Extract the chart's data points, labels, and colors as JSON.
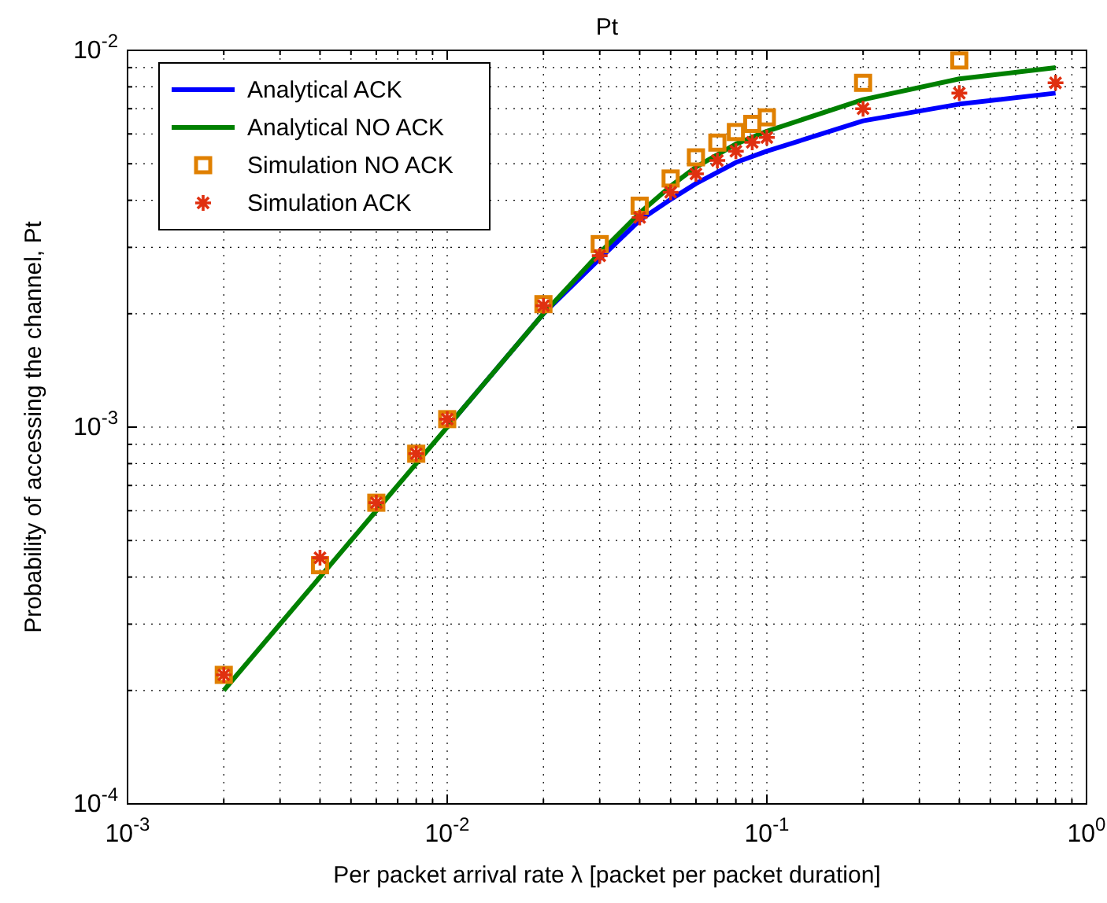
{
  "chart_data": {
    "type": "line",
    "title": "Pt",
    "xlabel": "Per packet arrival rate λ [packet per packet duration]",
    "ylabel": "Probability of accessing the channel, Pt",
    "log": "xy",
    "grid": true,
    "legend": "top left",
    "xlim": [
      0.001,
      1
    ],
    "ylim": [
      0.0001,
      0.01
    ],
    "xticks": [
      {
        "value": 0.001,
        "label": "10$^{-3}$"
      },
      {
        "value": 0.002,
        "label": null
      },
      {
        "value": 0.003,
        "label": null
      },
      {
        "value": 0.004,
        "label": null
      },
      {
        "value": 0.005,
        "label": null
      },
      {
        "value": 0.006,
        "label": null
      },
      {
        "value": 0.007,
        "label": null
      },
      {
        "value": 0.008,
        "label": null
      },
      {
        "value": 0.009,
        "label": null
      },
      {
        "value": 0.01,
        "label": "10$^{-2}$"
      },
      {
        "value": 0.02,
        "label": null
      },
      {
        "value": 0.03,
        "label": null
      },
      {
        "value": 0.04,
        "label": null
      },
      {
        "value": 0.05,
        "label": null
      },
      {
        "value": 0.06,
        "label": null
      },
      {
        "value": 0.07,
        "label": null
      },
      {
        "value": 0.08,
        "label": null
      },
      {
        "value": 0.09,
        "label": null
      },
      {
        "value": 0.1,
        "label": "10$^{-1}$"
      },
      {
        "value": 0.2,
        "label": null
      },
      {
        "value": 0.3,
        "label": null
      },
      {
        "value": 0.4,
        "label": null
      },
      {
        "value": 0.5,
        "label": null
      },
      {
        "value": 0.6,
        "label": null
      },
      {
        "value": 0.7,
        "label": null
      },
      {
        "value": 0.8,
        "label": null
      },
      {
        "value": 0.9,
        "label": null
      },
      {
        "value": 1,
        "label": "10$^{0}$"
      }
    ],
    "yticks": [
      {
        "value": 0.0001,
        "label": "10$^{-4}$"
      },
      {
        "value": 0.0002,
        "label": null
      },
      {
        "value": 0.0003,
        "label": null
      },
      {
        "value": 0.0004,
        "label": null
      },
      {
        "value": 0.0005,
        "label": null
      },
      {
        "value": 0.0006,
        "label": null
      },
      {
        "value": 0.0007,
        "label": null
      },
      {
        "value": 0.0008,
        "label": null
      },
      {
        "value": 0.0009,
        "label": null
      },
      {
        "value": 0.001,
        "label": "10$^{-3}$"
      },
      {
        "value": 0.002,
        "label": null
      },
      {
        "value": 0.003,
        "label": null
      },
      {
        "value": 0.004,
        "label": null
      },
      {
        "value": 0.005,
        "label": null
      },
      {
        "value": 0.006,
        "label": null
      },
      {
        "value": 0.007,
        "label": null
      },
      {
        "value": 0.008,
        "label": null
      },
      {
        "value": 0.009,
        "label": null
      },
      {
        "value": 0.01,
        "label": "10$^{-2}$"
      }
    ],
    "series": [
      {
        "name": "Analytical ACK",
        "color": "#0000ff",
        "marker": "none",
        "x": [
          0.01,
          0.02,
          0.03,
          0.04,
          0.05,
          0.06,
          0.08,
          0.1,
          0.2,
          0.4,
          0.8
        ],
        "values": [
          0.001,
          0.002,
          0.0028,
          0.00354,
          0.00402,
          0.00443,
          0.00504,
          0.0054,
          0.0065,
          0.0072,
          0.0077
        ]
      },
      {
        "name": "Analytical NO ACK",
        "color": "#008000",
        "marker": "none",
        "x": [
          0.002,
          0.004,
          0.006,
          0.008,
          0.01,
          0.02,
          0.03,
          0.04,
          0.05,
          0.06,
          0.08,
          0.1,
          0.2,
          0.4,
          0.8
        ],
        "values": [
          0.0002,
          0.0004,
          0.0006,
          0.0008,
          0.001,
          0.002,
          0.0029,
          0.0037,
          0.00436,
          0.0049,
          0.00564,
          0.0061,
          0.0074,
          0.0084,
          0.009
        ]
      },
      {
        "name": "Simulation NO ACK",
        "type": "scatter",
        "color": "#e08000",
        "marker": "square",
        "x": [
          0.002,
          0.004,
          0.006,
          0.008,
          0.01,
          0.02,
          0.03,
          0.04,
          0.05,
          0.06,
          0.07,
          0.08,
          0.09,
          0.1,
          0.2,
          0.4
        ],
        "values": [
          0.00022,
          0.00043,
          0.00063,
          0.00085,
          0.00105,
          0.00212,
          0.00306,
          0.00387,
          0.00457,
          0.0052,
          0.00569,
          0.00607,
          0.00638,
          0.00664,
          0.0082,
          0.0094
        ]
      },
      {
        "name": "Simulation ACK",
        "type": "scatter",
        "color": "#e03010",
        "marker": "cross",
        "x": [
          0.002,
          0.004,
          0.006,
          0.008,
          0.01,
          0.02,
          0.03,
          0.04,
          0.05,
          0.06,
          0.07,
          0.08,
          0.09,
          0.1,
          0.2,
          0.4,
          0.8
        ],
        "values": [
          0.00022,
          0.00045,
          0.00063,
          0.00085,
          0.00105,
          0.0021,
          0.00285,
          0.0036,
          0.0042,
          0.0047,
          0.0051,
          0.0054,
          0.0057,
          0.00587,
          0.007,
          0.0077,
          0.0082
        ]
      }
    ]
  }
}
